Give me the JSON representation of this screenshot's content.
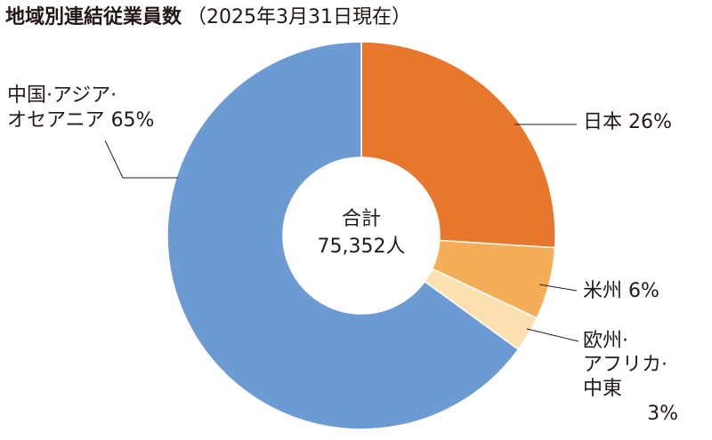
{
  "chart_data": {
    "type": "donut",
    "title": "地域別連結従業員数",
    "subtitle": "（2025年3月31日現在）",
    "categories": [
      [
        "日本"
      ],
      [
        "米州"
      ],
      [
        "欧州·",
        "アフリカ·",
        "中東"
      ],
      [
        "中国·アジア·",
        "オセアニア"
      ]
    ],
    "values": [
      26,
      6,
      3,
      65
    ],
    "value_labels": [
      "26%",
      "6%",
      "3%",
      "65%"
    ],
    "colors": [
      "#e8772e",
      "#f4ae57",
      "#fde0b0",
      "#6b9bd2"
    ],
    "center_label": "合計",
    "center_value": "75,352人"
  }
}
